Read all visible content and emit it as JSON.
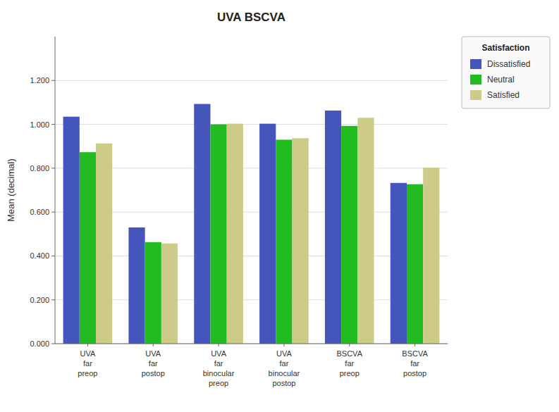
{
  "chart_data": {
    "type": "bar",
    "title": "UVA BSCVA",
    "ylabel": "Mean (decimal)",
    "categories": [
      "UVA\nfar\npreop",
      "UVA\nfar\npostop",
      "UVA\nfar\nbinocular\npreop",
      "UVA\nfar\nbinocular\npostop",
      "BSCVA\nfar\npreop",
      "BSCVA\nfar\npostop"
    ],
    "series": [
      {
        "name": "Dissatisfied",
        "color": "#4455BB",
        "values": [
          1.035,
          0.53,
          1.093,
          1.003,
          1.063,
          0.733
        ]
      },
      {
        "name": "Neutral",
        "color": "#22BB22",
        "values": [
          0.873,
          0.463,
          1.0,
          0.93,
          0.993,
          0.727
        ]
      },
      {
        "name": "Satisfied",
        "color": "#CCCC88",
        "values": [
          0.913,
          0.457,
          1.003,
          0.937,
          1.03,
          0.803
        ]
      }
    ],
    "legend_title": "Satisfaction",
    "legend": "right",
    "ylim": [
      0,
      1.4
    ],
    "yticks": [
      {
        "value": 0,
        "label": "0.000"
      },
      {
        "value": 0.2,
        "label": "0.200"
      },
      {
        "value": 0.4,
        "label": "0.400"
      },
      {
        "value": 0.6,
        "label": "0.600"
      },
      {
        "value": 0.8,
        "label": "0.800"
      },
      {
        "value": 1.0,
        "label": "1.000"
      },
      {
        "value": 1.2,
        "label": "1.200"
      }
    ],
    "grid": true
  }
}
